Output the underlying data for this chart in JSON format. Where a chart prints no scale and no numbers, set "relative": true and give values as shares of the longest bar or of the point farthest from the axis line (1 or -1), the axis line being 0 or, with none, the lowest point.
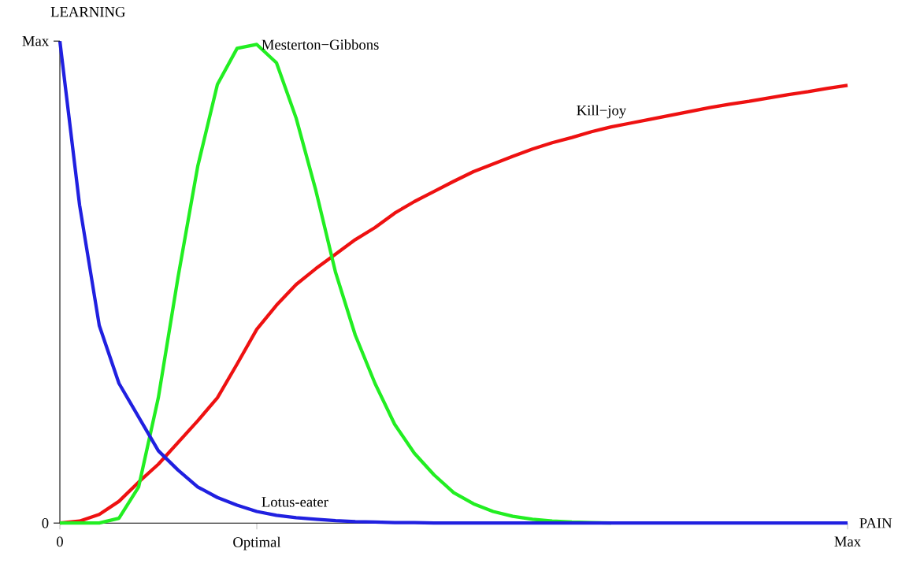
{
  "chart_data": {
    "type": "line",
    "xlabel": "PAIN",
    "ylabel": "LEARNING",
    "relative": true,
    "categories": [
      "0",
      null,
      null,
      null,
      null,
      null,
      null,
      null,
      null,
      null,
      "Optimal",
      null,
      null,
      null,
      null,
      null,
      null,
      null,
      null,
      null,
      null,
      null,
      null,
      null,
      null,
      null,
      null,
      null,
      null,
      null,
      null,
      null,
      null,
      null,
      null,
      null,
      null,
      null,
      null,
      null,
      "Max"
    ],
    "annotations": [
      "0",
      "Max"
    ],
    "series": [
      {
        "name": "Lotus-eater",
        "color": "#2020e0",
        "values": [
          1,
          0.66,
          0.41,
          0.29,
          0.22,
          0.15,
          0.11,
          0.075,
          0.053,
          0.037,
          0.024,
          0.016,
          0.011,
          0.008,
          0.005,
          0.003,
          0.002,
          0.001,
          0.001,
          0,
          0,
          0,
          0,
          0,
          0,
          0,
          0,
          0,
          0,
          0,
          0,
          0,
          0,
          0,
          0,
          0,
          0,
          0,
          0,
          0,
          0
        ]
      },
      {
        "name": "Mesterton−Gibbons",
        "color": "#22ee22",
        "values": [
          0,
          0,
          0,
          0.01,
          0.075,
          0.26,
          0.51,
          0.74,
          0.91,
          0.985,
          0.993,
          0.955,
          0.84,
          0.69,
          0.52,
          0.39,
          0.29,
          0.205,
          0.145,
          0.1,
          0.063,
          0.04,
          0.024,
          0.014,
          0.008,
          0.004,
          0.002,
          0.001,
          0,
          null,
          null,
          null,
          null,
          null,
          null,
          null,
          null,
          null,
          null,
          null,
          null
        ]
      },
      {
        "name": "Kill−joy",
        "color": "#ee1111",
        "values": [
          0,
          0.004,
          0.018,
          0.045,
          0.085,
          0.122,
          0.167,
          0.212,
          0.26,
          0.33,
          0.402,
          0.452,
          0.495,
          0.528,
          0.558,
          0.588,
          0.613,
          0.643,
          0.667,
          0.688,
          0.709,
          0.729,
          0.745,
          0.761,
          0.776,
          0.789,
          0.8,
          0.812,
          0.822,
          0.83,
          0.838,
          0.846,
          0.854,
          0.862,
          0.869,
          0.875,
          0.882,
          0.889,
          0.895,
          0.902,
          0.908
        ]
      }
    ]
  }
}
